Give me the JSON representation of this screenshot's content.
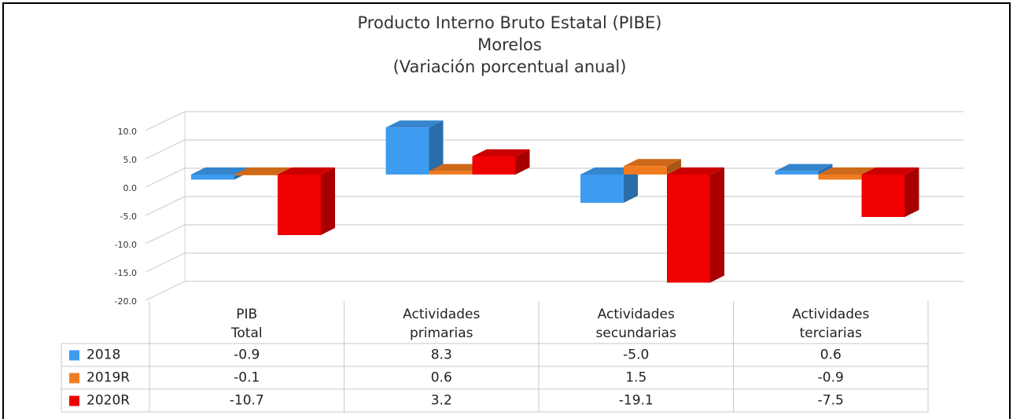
{
  "chart_data": {
    "type": "bar3d",
    "title": "Producto Interno Bruto Estatal (PIBE)",
    "subtitle": "Morelos",
    "annotation": "(Variación porcentual anual)",
    "categories": [
      "PIB Total",
      "Actividades primarias",
      "Actividades secundarias",
      "Actividades terciarias"
    ],
    "series": [
      {
        "name": "2018",
        "color": "#3d9cf0",
        "values": [
          -0.9,
          8.3,
          -5.0,
          0.6
        ],
        "value_labels": [
          "-0.9",
          "8.3",
          "-5.0",
          "0.6"
        ]
      },
      {
        "name": "2019R",
        "color": "#f27b1f",
        "values": [
          -0.1,
          0.6,
          1.5,
          -0.9
        ],
        "value_labels": [
          "-0.1",
          "0.6",
          "1.5",
          "-0.9"
        ]
      },
      {
        "name": "2020R",
        "color": "#f00000",
        "values": [
          -10.7,
          3.2,
          -19.1,
          -7.5
        ],
        "value_labels": [
          "-10.7",
          "3.2",
          "-19.1",
          "-7.5"
        ]
      }
    ],
    "ylim": [
      -20,
      10
    ],
    "yticks": [
      {
        "value": 10,
        "label": "10.0"
      },
      {
        "value": 5,
        "label": "5.0"
      },
      {
        "value": 0,
        "label": "0.0"
      },
      {
        "value": -5,
        "label": "-5.0"
      },
      {
        "value": -10,
        "label": "-10.0"
      },
      {
        "value": -15,
        "label": "-15.0"
      },
      {
        "value": -20,
        "label": "-20.0"
      }
    ],
    "grid": true,
    "data_table": true
  }
}
